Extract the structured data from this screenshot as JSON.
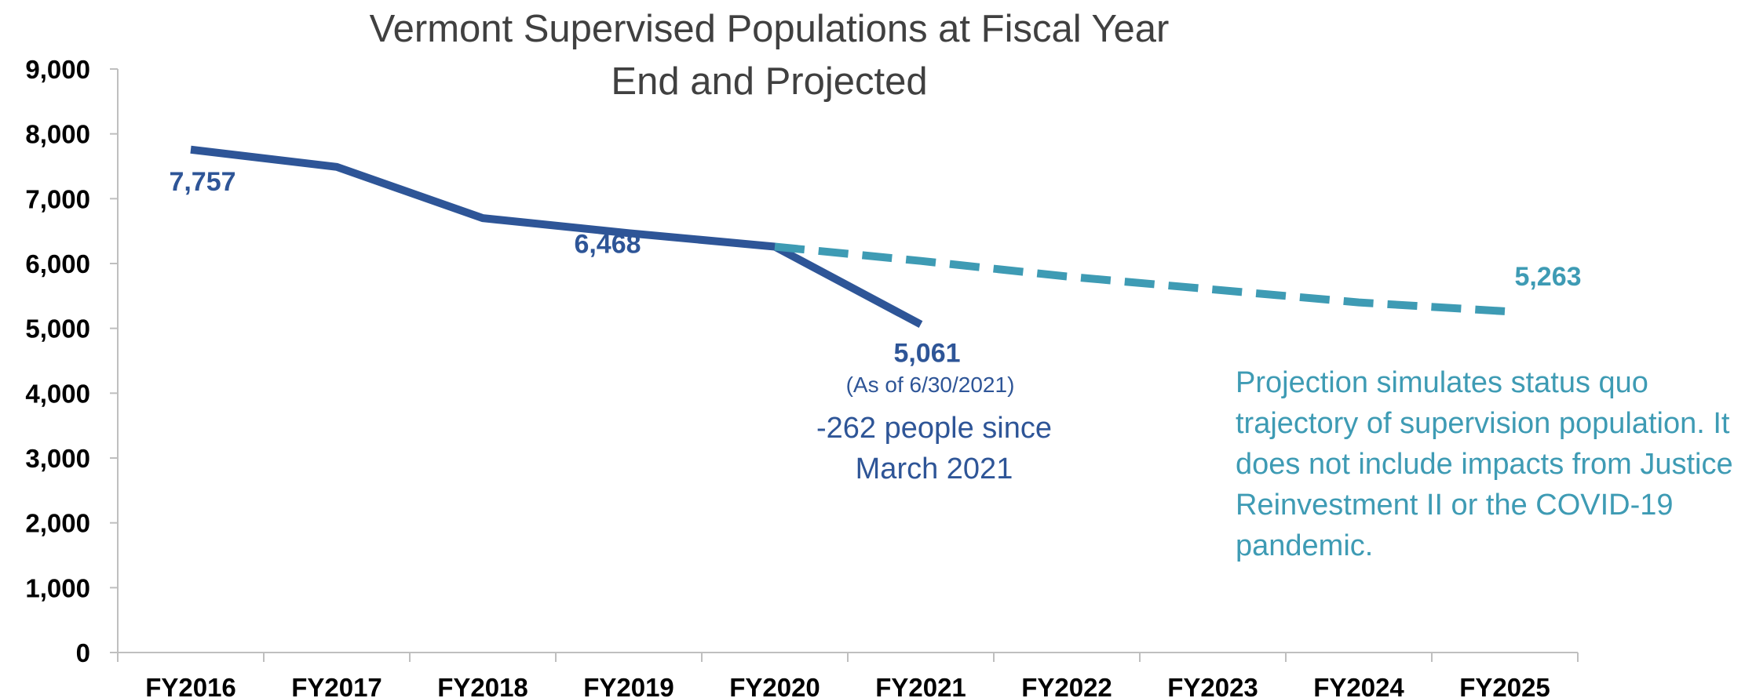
{
  "chart_data": {
    "type": "line",
    "title": "Vermont Supervised Populations at Fiscal Year End and Projected",
    "title_lines": [
      "Vermont Supervised Populations at Fiscal Year",
      "End and Projected"
    ],
    "categories": [
      "FY2016",
      "FY2017",
      "FY2018",
      "FY2019",
      "FY2020",
      "FY2021",
      "FY2022",
      "FY2023",
      "FY2024",
      "FY2025"
    ],
    "ylim": [
      0,
      9000
    ],
    "yticks": [
      0,
      1000,
      2000,
      3000,
      4000,
      5000,
      6000,
      7000,
      8000,
      9000
    ],
    "ytick_labels": [
      "0",
      "1,000",
      "2,000",
      "3,000",
      "4,000",
      "5,000",
      "6,000",
      "7,000",
      "8,000",
      "9,000"
    ],
    "grid": false,
    "legend": "none",
    "series": [
      {
        "style": "solid",
        "color": "#2e5597",
        "values": [
          7757,
          7490,
          6700,
          6468,
          6260,
          5061,
          null,
          null,
          null,
          null
        ]
      },
      {
        "style": "dashed",
        "color": "#3e9bb4",
        "values": [
          null,
          null,
          null,
          null,
          6260,
          6040,
          5800,
          5600,
          5400,
          5263
        ]
      }
    ],
    "data_labels": {
      "fy2016": "7,757",
      "fy2019": "6,468",
      "fy2021": "5,061",
      "fy2025": "5,263"
    },
    "annotations": {
      "as_of": "(As of 6/30/2021)",
      "change_line1": "-262 people since",
      "change_line2": "March 2021",
      "note": "Projection simulates status quo trajectory of supervision population. It does not include impacts from Justice Reinvestment II or the COVID-19 pandemic."
    }
  }
}
